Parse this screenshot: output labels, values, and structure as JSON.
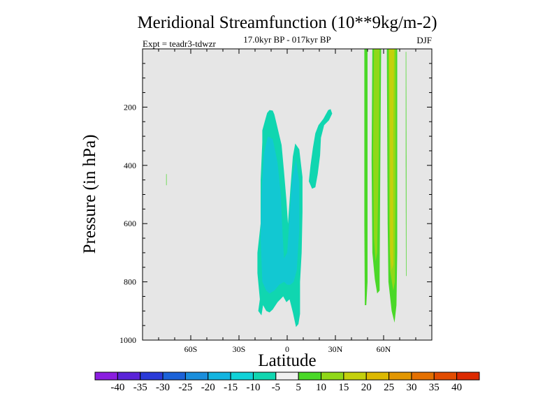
{
  "chart_data": {
    "type": "contour",
    "title": "Meridional Streamfunction (10**9kg/m-2)",
    "subtitle_left": "Expt = teadr3-tdwzr",
    "subtitle_center": "17.0kyr BP - 017kyr BP",
    "subtitle_right": "DJF",
    "xlabel": "Latitude",
    "ylabel": "Pressure (in hPa)",
    "xlim": [
      -90,
      90
    ],
    "ylim": [
      0,
      1000
    ],
    "y_inverted": true,
    "x_ticks": [
      {
        "value": -60,
        "label": "60S"
      },
      {
        "value": -30,
        "label": "30S"
      },
      {
        "value": 0,
        "label": "0"
      },
      {
        "value": 30,
        "label": "30N"
      },
      {
        "value": 60,
        "label": "60N"
      }
    ],
    "y_ticks": [
      {
        "value": 200,
        "label": "200"
      },
      {
        "value": 400,
        "label": "400"
      },
      {
        "value": 600,
        "label": "600"
      },
      {
        "value": 800,
        "label": "800"
      },
      {
        "value": 1000,
        "label": "1000"
      }
    ],
    "background_color": "#e6e6e6",
    "colorbar": {
      "labels": [
        "-40",
        "-35",
        "-30",
        "-25",
        "-20",
        "-15",
        "-10",
        "-5",
        "5",
        "10",
        "15",
        "20",
        "25",
        "30",
        "35",
        "40"
      ],
      "colors": [
        "#8b1de0",
        "#5a23d8",
        "#2a3ad8",
        "#1b62d8",
        "#1a8edc",
        "#12b4e0",
        "#10d2d8",
        "#10d6b0",
        "#f0f0f0",
        "#4ad828",
        "#90d818",
        "#c4d00c",
        "#dcb800",
        "#e29600",
        "#e47000",
        "#e24c00",
        "#dc2a00"
      ]
    },
    "regions": [
      {
        "name": "region-negative-broad",
        "level": "-10 to -5",
        "color": "#10d6b0",
        "points": [
          [
            -18,
            900
          ],
          [
            -17,
            860
          ],
          [
            -18.5,
            770
          ],
          [
            -18.5,
            700
          ],
          [
            -16.5,
            600
          ],
          [
            -16.5,
            450
          ],
          [
            -15.5,
            320
          ],
          [
            -15.5,
            280
          ],
          [
            -14,
            250
          ],
          [
            -12.5,
            220
          ],
          [
            -11,
            210
          ],
          [
            -9,
            212
          ],
          [
            -8,
            225
          ],
          [
            -6.5,
            260
          ],
          [
            -3.5,
            330
          ],
          [
            -2,
            420
          ],
          [
            -0.5,
            520
          ],
          [
            0.5,
            600
          ],
          [
            2,
            480
          ],
          [
            3.5,
            370
          ],
          [
            5,
            325
          ],
          [
            7.5,
            345
          ],
          [
            9.5,
            440
          ],
          [
            9.5,
            560
          ],
          [
            9,
            700
          ],
          [
            8,
            800
          ],
          [
            8,
            910
          ],
          [
            7,
            945
          ],
          [
            5.5,
            955
          ],
          [
            3.5,
            905
          ],
          [
            1.5,
            860
          ],
          [
            -0.5,
            870
          ],
          [
            -2.5,
            850
          ],
          [
            -6,
            870
          ],
          [
            -9,
            895
          ],
          [
            -11,
            905
          ],
          [
            -13,
            900
          ],
          [
            -15,
            880
          ],
          [
            -16,
            915
          ]
        ]
      },
      {
        "name": "region-negative-core",
        "level": "-15 to -10",
        "color": "#12c8d2",
        "points": [
          [
            -15.5,
            800
          ],
          [
            -16.5,
            650
          ],
          [
            -16,
            500
          ],
          [
            -14.5,
            360
          ],
          [
            -12,
            300
          ],
          [
            -9,
            310
          ],
          [
            -6,
            390
          ],
          [
            -4,
            500
          ],
          [
            -3,
            620
          ],
          [
            -2,
            720
          ],
          [
            0,
            700
          ],
          [
            1.5,
            580
          ],
          [
            3,
            450
          ],
          [
            5.5,
            380
          ],
          [
            7.5,
            460
          ],
          [
            7.5,
            620
          ],
          [
            6,
            760
          ],
          [
            4,
            800
          ],
          [
            2,
            810
          ],
          [
            0,
            810
          ],
          [
            -2,
            800
          ],
          [
            -5,
            810
          ],
          [
            -8,
            830
          ],
          [
            -11,
            840
          ],
          [
            -13,
            830
          ]
        ]
      },
      {
        "name": "region-upper-arm",
        "level": "-10 to -5",
        "color": "#10d6b0",
        "points": [
          [
            15.5,
            480
          ],
          [
            13.5,
            455
          ],
          [
            14.5,
            400
          ],
          [
            16,
            340
          ],
          [
            17.5,
            290
          ],
          [
            19.5,
            262
          ],
          [
            22.5,
            240
          ],
          [
            25.5,
            210
          ],
          [
            27,
            207
          ],
          [
            28,
            222
          ],
          [
            26,
            245
          ],
          [
            23,
            262
          ],
          [
            21,
            305
          ],
          [
            20.5,
            365
          ],
          [
            19,
            430
          ],
          [
            17.5,
            475
          ]
        ]
      },
      {
        "name": "region-band-60n-left",
        "level": "5 to 10",
        "color": "#4ad828",
        "points": [
          [
            48,
            0
          ],
          [
            50,
            0
          ],
          [
            50,
            600
          ],
          [
            50,
            800
          ],
          [
            49.2,
            880
          ],
          [
            48.3,
            880
          ],
          [
            48,
            600
          ]
        ]
      },
      {
        "name": "region-band-60n-main",
        "level": "5 to 10",
        "color": "#4ad828",
        "points": [
          [
            53,
            0
          ],
          [
            58.5,
            0
          ],
          [
            58,
            350
          ],
          [
            57.5,
            780
          ],
          [
            57.5,
            830
          ],
          [
            56,
            840
          ],
          [
            54.5,
            790
          ],
          [
            53,
            700
          ],
          [
            52.5,
            380
          ]
        ]
      },
      {
        "name": "region-band-60n-main-core",
        "level": "10 to 15",
        "color": "#90d818",
        "points": [
          [
            54,
            0
          ],
          [
            57.5,
            0
          ],
          [
            57,
            360
          ],
          [
            56,
            700
          ],
          [
            55,
            730
          ],
          [
            54,
            650
          ],
          [
            53.5,
            360
          ]
        ]
      },
      {
        "name": "region-band-60n-right",
        "level": "5 to 10",
        "color": "#4ad828",
        "points": [
          [
            62,
            0
          ],
          [
            68.5,
            0
          ],
          [
            68.5,
            450
          ],
          [
            68.5,
            700
          ],
          [
            68,
            880
          ],
          [
            66.8,
            940
          ],
          [
            65,
            900
          ],
          [
            63,
            800
          ],
          [
            62.5,
            600
          ]
        ]
      },
      {
        "name": "region-band-60n-right-mid",
        "level": "10 to 15",
        "color": "#90d818",
        "points": [
          [
            63,
            0
          ],
          [
            67.5,
            0
          ],
          [
            67.5,
            500
          ],
          [
            67,
            800
          ],
          [
            66,
            830
          ],
          [
            64,
            760
          ],
          [
            63.5,
            600
          ]
        ]
      },
      {
        "name": "region-band-60n-right-core",
        "level": "15 to 20",
        "color": "#c4d00c",
        "points": [
          [
            63.5,
            0
          ],
          [
            66.5,
            0
          ],
          [
            66,
            300
          ],
          [
            66,
            740
          ],
          [
            65,
            760
          ],
          [
            64,
            700
          ],
          [
            64,
            400
          ]
        ]
      },
      {
        "name": "region-thin-line-74n",
        "level": "5 to 10",
        "color": "#4ad828",
        "points": [
          [
            73.8,
            10
          ],
          [
            74.1,
            10
          ],
          [
            74.2,
            400
          ],
          [
            74.2,
            780
          ],
          [
            73.9,
            780
          ],
          [
            73.8,
            400
          ]
        ]
      },
      {
        "name": "region-thin-line-75s",
        "level": "5 to 10",
        "color": "#4ad828",
        "points": [
          [
            -75.3,
            430
          ],
          [
            -75,
            430
          ],
          [
            -75,
            468
          ],
          [
            -75.3,
            468
          ]
        ]
      }
    ]
  }
}
